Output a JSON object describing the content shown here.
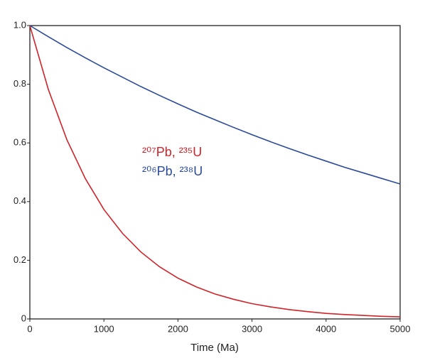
{
  "chart_data": {
    "type": "line",
    "x_label": "Time (Ma)",
    "x": [
      0,
      250,
      500,
      750,
      1000,
      1250,
      1500,
      1750,
      2000,
      2250,
      2500,
      2750,
      3000,
      3250,
      3500,
      3750,
      4000,
      4250,
      4500,
      4750,
      5000
    ],
    "series": [
      {
        "name": "²⁰⁷Pb, ²³⁵U",
        "color": "#d1232a",
        "values": [
          1,
          0.782,
          0.611,
          0.478,
          0.373,
          0.292,
          0.228,
          0.178,
          0.139,
          0.109,
          0.085,
          0.067,
          0.052,
          0.041,
          0.032,
          0.025,
          0.019,
          0.015,
          0.012,
          0.009,
          0.007
        ]
      },
      {
        "name": "²⁰⁶Pb, ²³⁸U",
        "color": "#2b4a9a",
        "values": [
          1,
          0.962,
          0.925,
          0.89,
          0.856,
          0.824,
          0.792,
          0.762,
          0.733,
          0.705,
          0.679,
          0.653,
          0.628,
          0.604,
          0.581,
          0.559,
          0.538,
          0.517,
          0.498,
          0.479,
          0.46
        ]
      }
    ],
    "xlim": [
      0,
      5000
    ],
    "xticks": [
      0,
      1000,
      2000,
      3000,
      4000,
      5000
    ],
    "ylim": [
      0,
      1
    ],
    "yticks": [
      0,
      0.2,
      0.4,
      0.6,
      0.8,
      {
        "value": 1,
        "label": "1.0"
      }
    ]
  }
}
